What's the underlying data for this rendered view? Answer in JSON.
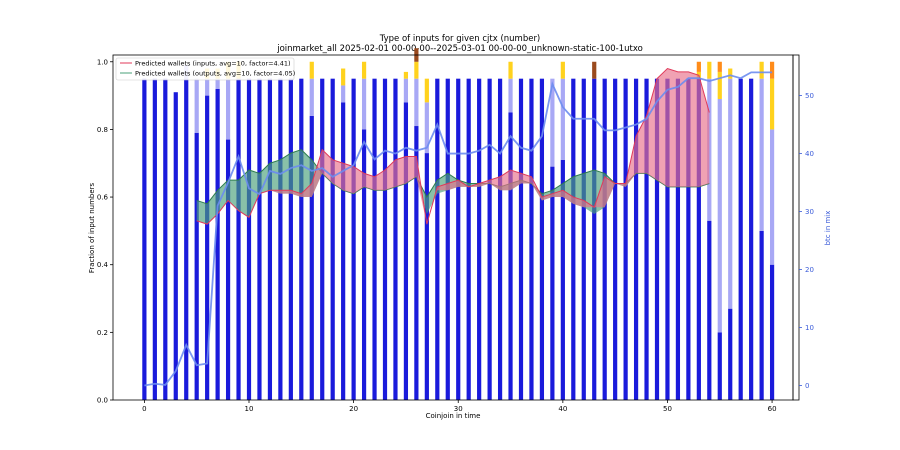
{
  "chart_data": {
    "type": "bar",
    "title": "Type of inputs for given cjtx (number)",
    "subtitle": "joinmarket_all 2025-02-01 00-00-00--2025-03-01 00-00-00_unknown-static-100-1utxo",
    "xlabel": "Coinjoin in time",
    "ylabel": "Fraction of input numbers",
    "ylabel_right": "btc in mix",
    "xlim": [
      -3,
      62
    ],
    "ylim": [
      0.0,
      1.02
    ],
    "ylim_right": [
      -2.5,
      57
    ],
    "x_ticks": [
      0,
      10,
      20,
      30,
      40,
      50,
      60
    ],
    "y_ticks": [
      0.0,
      0.2,
      0.4,
      0.6,
      0.8,
      1.0
    ],
    "y_ticks_right": [
      0,
      10,
      20,
      30,
      40,
      50
    ],
    "colors": {
      "fresh": "#1a1adb",
      "remix": "#a8a8f5",
      "yellow": "#ffd21e",
      "orange": "#ff8c1a",
      "brown": "#9a4a1e",
      "pink": "#ffc2a8",
      "btc_line": "#6b8cf0",
      "inputs_fill": "#e8708a",
      "inputs_line": "#e03a5a",
      "outputs_fill": "#4aa07a",
      "outputs_line": "#2e7d4f"
    },
    "stack_series": [
      {
        "key": "fresh",
        "values": [
          0.95,
          0.95,
          0.95,
          0.91,
          0.95,
          0.79,
          0.9,
          0.92,
          0.77,
          0.95,
          0.95,
          0.95,
          0.95,
          0.95,
          0.95,
          0.95,
          0.84,
          0.95,
          0.95,
          0.88,
          0.95,
          0.8,
          0.95,
          0.95,
          0.95,
          0.88,
          0.81,
          0.73,
          0.95,
          0.95,
          0.95,
          0.95,
          0.95,
          0.95,
          0.95,
          0.85,
          0.95,
          0.95,
          0.95,
          0.69,
          0.71,
          0.95,
          0.95,
          0.95,
          0.95,
          0.95,
          0.95,
          0.95,
          0.95,
          0.95,
          0.95,
          0.95,
          0.95,
          0.95,
          0.53,
          0.2,
          0.27,
          0.95,
          0.95,
          0.5,
          0.4
        ]
      },
      {
        "key": "remix",
        "values": [
          0,
          0,
          0,
          0,
          0.04,
          0.16,
          0.05,
          0.03,
          0.18,
          0,
          0,
          0,
          0,
          0,
          0,
          0,
          0.11,
          0,
          0,
          0.05,
          0,
          0.15,
          0,
          0,
          0,
          0.07,
          0.14,
          0.15,
          0,
          0,
          0,
          0,
          0,
          0,
          0,
          0.1,
          0,
          0,
          0,
          0.26,
          0.24,
          0,
          0,
          0,
          0,
          0,
          0,
          0,
          0,
          0,
          0,
          0,
          0,
          0,
          0.42,
          0.69,
          0.68,
          0,
          0,
          0.45,
          0.4
        ]
      },
      {
        "key": "yellow",
        "values": [
          0,
          0,
          0,
          0,
          0,
          0,
          0.03,
          0.03,
          0.05,
          0.05,
          0,
          0,
          0,
          0,
          0,
          0,
          0.05,
          0,
          0,
          0.05,
          0,
          0.05,
          0,
          0,
          0,
          0.02,
          0.05,
          0.07,
          0,
          0,
          0,
          0,
          0,
          0,
          0,
          0.05,
          0,
          0,
          0,
          0,
          0.05,
          0,
          0,
          0,
          0,
          0,
          0,
          0,
          0,
          0,
          0,
          0,
          0,
          0.02,
          0.05,
          0.08,
          0.03,
          0,
          0,
          0.05,
          0.15
        ]
      },
      {
        "key": "orange",
        "values": [
          0,
          0,
          0,
          0,
          0,
          0,
          0,
          0,
          0,
          0,
          0,
          0,
          0,
          0,
          0,
          0,
          0,
          0,
          0,
          0,
          0,
          0,
          0,
          0,
          0,
          0,
          0,
          0,
          0,
          0,
          0,
          0,
          0,
          0,
          0,
          0,
          0,
          0,
          0,
          0,
          0,
          0,
          0,
          0,
          0,
          0,
          0,
          0,
          0,
          0,
          0,
          0,
          0,
          0.03,
          0,
          0.03,
          0,
          0,
          0,
          0,
          0.05
        ]
      },
      {
        "key": "brown",
        "values": [
          0,
          0,
          0,
          0,
          0,
          0,
          0,
          0,
          0,
          0,
          0,
          0,
          0,
          0,
          0,
          0,
          0,
          0,
          0,
          0,
          0,
          0,
          0,
          0,
          0,
          0,
          0.04,
          0,
          0,
          0,
          0,
          0,
          0,
          0,
          0,
          0,
          0,
          0,
          0,
          0,
          0,
          0,
          0,
          0.05,
          0,
          0,
          0,
          0,
          0,
          0,
          0,
          0,
          0,
          0,
          0,
          0,
          0,
          0,
          0,
          0,
          0
        ]
      }
    ],
    "series": [
      {
        "name": "Predicted wallets (inputs, avg=10, factor=4.41)",
        "kind": "band",
        "x": [
          5,
          6,
          7,
          8,
          9,
          10,
          11,
          12,
          13,
          14,
          15,
          16,
          17,
          18,
          19,
          20,
          21,
          22,
          23,
          24,
          25,
          26,
          27,
          28,
          29,
          30,
          31,
          32,
          33,
          34,
          35,
          36,
          37,
          38,
          39,
          40,
          41,
          42,
          43,
          44,
          45,
          46,
          47,
          48,
          49,
          50,
          51,
          52,
          53,
          54
        ],
        "upper": [
          0.53,
          0.52,
          0.55,
          0.59,
          0.56,
          0.54,
          0.61,
          0.62,
          0.62,
          0.62,
          0.61,
          0.64,
          0.74,
          0.71,
          0.7,
          0.69,
          0.67,
          0.66,
          0.68,
          0.71,
          0.72,
          0.72,
          0.52,
          0.63,
          0.64,
          0.65,
          0.63,
          0.64,
          0.65,
          0.66,
          0.68,
          0.67,
          0.66,
          0.6,
          0.61,
          0.62,
          0.6,
          0.59,
          0.57,
          0.66,
          0.64,
          0.64,
          0.78,
          0.84,
          0.95,
          0.98,
          0.97,
          0.97,
          0.96,
          0.85
        ],
        "lower": [
          0.53,
          0.52,
          0.55,
          0.59,
          0.56,
          0.54,
          0.61,
          0.62,
          0.61,
          0.61,
          0.6,
          0.6,
          0.67,
          0.64,
          0.62,
          0.61,
          0.63,
          0.62,
          0.62,
          0.63,
          0.64,
          0.66,
          0.52,
          0.62,
          0.62,
          0.63,
          0.63,
          0.63,
          0.64,
          0.62,
          0.62,
          0.64,
          0.64,
          0.59,
          0.6,
          0.6,
          0.58,
          0.57,
          0.57,
          0.57,
          0.64,
          0.63,
          0.67,
          0.67,
          0.65,
          0.63,
          0.63,
          0.63,
          0.63,
          0.64
        ]
      },
      {
        "name": "Predicted wallets (outputs, avg=10, factor=4.05)",
        "kind": "band",
        "x": [
          5,
          6,
          7,
          8,
          9,
          10,
          11,
          12,
          13,
          14,
          15,
          16,
          17,
          18,
          19,
          20,
          21,
          22,
          23,
          24,
          25,
          26,
          27,
          28,
          29,
          30,
          31,
          32,
          33,
          34,
          35,
          36,
          37,
          38,
          39,
          40,
          41,
          42,
          43,
          44,
          45,
          46,
          47,
          48,
          49,
          50,
          51,
          52,
          53,
          54
        ],
        "upper": [
          0.59,
          0.58,
          0.62,
          0.65,
          0.65,
          0.68,
          0.67,
          0.7,
          0.71,
          0.73,
          0.74,
          0.71,
          0.67,
          0.64,
          0.62,
          0.61,
          0.63,
          0.62,
          0.62,
          0.63,
          0.64,
          0.66,
          0.6,
          0.65,
          0.67,
          0.65,
          0.64,
          0.64,
          0.64,
          0.63,
          0.64,
          0.65,
          0.64,
          0.61,
          0.62,
          0.64,
          0.66,
          0.67,
          0.68,
          0.67,
          0.64,
          0.64,
          0.67,
          0.67,
          0.65,
          0.63,
          0.63,
          0.63,
          0.63,
          0.64
        ],
        "lower": [
          0.53,
          0.52,
          0.55,
          0.59,
          0.56,
          0.54,
          0.61,
          0.62,
          0.61,
          0.61,
          0.6,
          0.6,
          0.67,
          0.64,
          0.62,
          0.61,
          0.63,
          0.62,
          0.62,
          0.63,
          0.64,
          0.66,
          0.55,
          0.61,
          0.62,
          0.63,
          0.63,
          0.63,
          0.64,
          0.62,
          0.62,
          0.64,
          0.64,
          0.59,
          0.6,
          0.6,
          0.58,
          0.57,
          0.55,
          0.57,
          0.64,
          0.63,
          0.67,
          0.67,
          0.65,
          0.63,
          0.63,
          0.63,
          0.63,
          0.64
        ]
      },
      {
        "name": "btc in mix",
        "kind": "line",
        "axis": "right",
        "x": [
          0,
          1,
          2,
          3,
          4,
          5,
          6,
          7,
          8,
          9,
          10,
          11,
          12,
          13,
          14,
          15,
          16,
          17,
          18,
          19,
          20,
          21,
          22,
          23,
          24,
          25,
          26,
          27,
          28,
          29,
          30,
          31,
          32,
          33,
          34,
          35,
          36,
          37,
          38,
          39,
          40,
          41,
          42,
          43,
          44,
          45,
          46,
          47,
          48,
          49,
          50,
          51,
          52,
          53,
          54,
          55,
          56,
          57,
          58,
          59,
          60
        ],
        "values": [
          0,
          0.3,
          0.1,
          2.5,
          7,
          3.5,
          3.8,
          31,
          35,
          39.5,
          34,
          33,
          37,
          36.5,
          37.5,
          38,
          37,
          37.5,
          36,
          37,
          38,
          42,
          39,
          40.5,
          40,
          41,
          40.5,
          41,
          45,
          40,
          40,
          40,
          40.5,
          41.5,
          40,
          43,
          41,
          40.5,
          43,
          52,
          48,
          46,
          46,
          46,
          44,
          44,
          44.5,
          45,
          46,
          49,
          51,
          51.5,
          53,
          53,
          52.5,
          53,
          53.5,
          53,
          54,
          54,
          54
        ]
      }
    ]
  }
}
